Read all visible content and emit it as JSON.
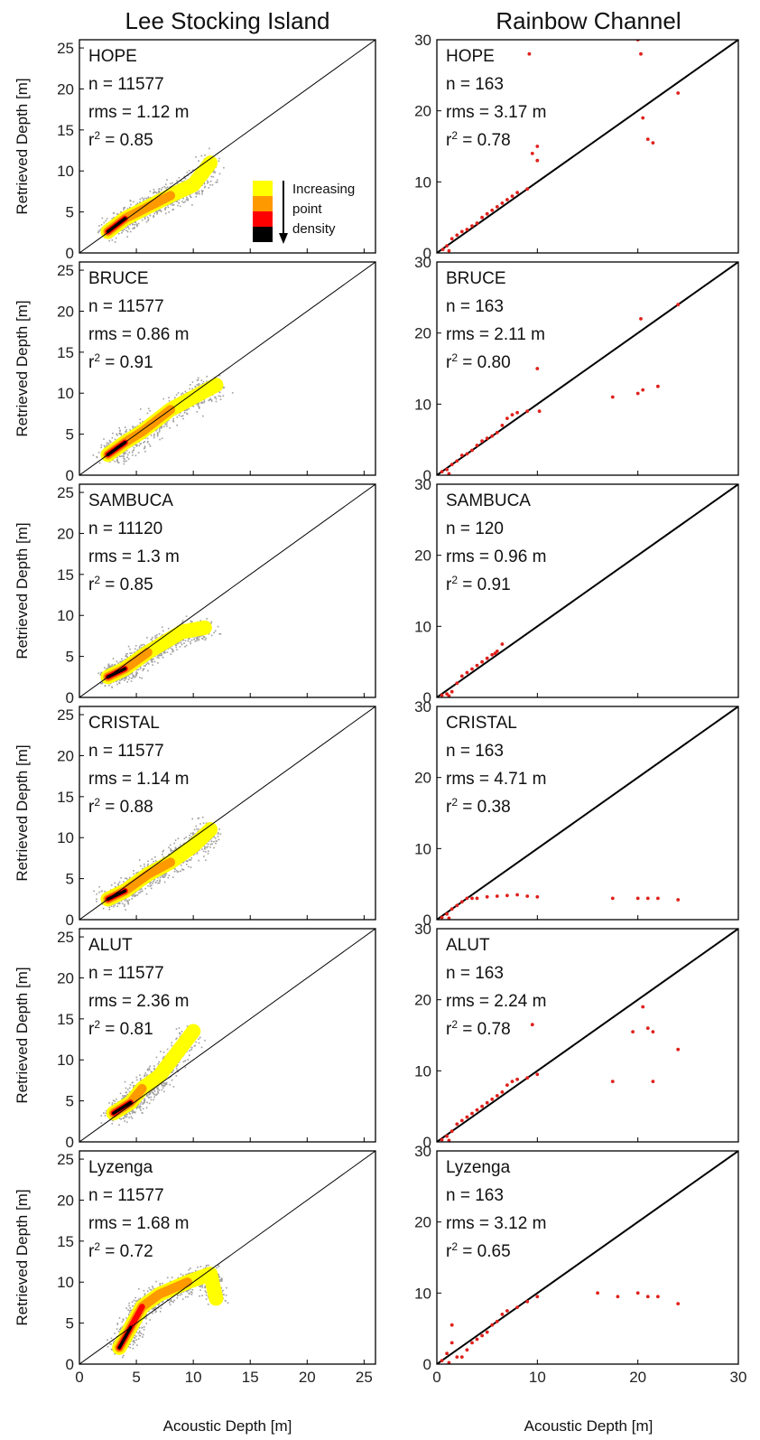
{
  "colors": {
    "lsi_cloud": "#9e9e9e",
    "lsi_density": [
      "#ffff00",
      "#ff9900",
      "#ff0000",
      "#000000"
    ],
    "rainbow_points": "#e0201b",
    "one_to_one_line": "#000000",
    "frame": "#000000"
  },
  "figure": {
    "column_titles": [
      "Lee Stocking Island",
      "Rainbow Channel"
    ],
    "ylabel": "Retrieved Depth [m]",
    "xlabel": "Acoustic Depth [m]",
    "legend": {
      "swatch_colors": [
        "#ffff00",
        "#ff9900",
        "#ff0000",
        "#000000"
      ],
      "lines": [
        "Increasing",
        "point",
        "density"
      ]
    }
  },
  "chart_data": [
    {
      "type": "scatter",
      "site": "Lee Stocking Island",
      "method": "HOPE",
      "n": "11577",
      "rms": "1.12 m",
      "r2": "0.85",
      "xlim": [
        0,
        26
      ],
      "ylim": [
        0,
        26
      ],
      "xticks": [
        0,
        5,
        10,
        15,
        20,
        25
      ],
      "yticks": [
        0,
        5,
        10,
        15,
        20,
        25
      ],
      "one_to_one": true,
      "density_core": [
        [
          2.5,
          2.6
        ],
        [
          4,
          4.2
        ],
        [
          6,
          5.6
        ],
        [
          8,
          7
        ],
        [
          10,
          8.3
        ],
        [
          11.5,
          11
        ]
      ]
    },
    {
      "type": "scatter",
      "site": "Rainbow Channel",
      "method": "HOPE",
      "n": "163",
      "rms": "3.17 m",
      "r2": "0.78",
      "xlim": [
        0,
        30
      ],
      "ylim": [
        0,
        30
      ],
      "xticks": [
        0,
        10,
        20,
        30
      ],
      "yticks": [
        0,
        10,
        20,
        30
      ],
      "one_to_one": true,
      "points": [
        [
          0.6,
          0.5
        ],
        [
          1,
          1
        ],
        [
          1.2,
          0.3
        ],
        [
          1.5,
          2
        ],
        [
          2,
          2.5
        ],
        [
          2.5,
          3
        ],
        [
          3,
          3.3
        ],
        [
          3.5,
          3.8
        ],
        [
          4,
          4.2
        ],
        [
          4.5,
          5
        ],
        [
          5,
          5.5
        ],
        [
          5.5,
          6
        ],
        [
          6,
          6.5
        ],
        [
          6.5,
          7
        ],
        [
          7,
          7.5
        ],
        [
          7.5,
          8
        ],
        [
          8,
          8.5
        ],
        [
          9,
          9
        ],
        [
          10,
          13
        ],
        [
          10,
          15
        ],
        [
          9.5,
          14
        ],
        [
          9.2,
          28
        ],
        [
          20,
          30
        ],
        [
          20.3,
          28
        ],
        [
          20.5,
          19
        ],
        [
          21,
          16
        ],
        [
          21.5,
          15.5
        ],
        [
          24,
          22.5
        ]
      ]
    },
    {
      "type": "scatter",
      "site": "Lee Stocking Island",
      "method": "BRUCE",
      "n": "11577",
      "rms": "0.86 m",
      "r2": "0.91",
      "xlim": [
        0,
        26
      ],
      "ylim": [
        0,
        26
      ],
      "xticks": [
        0,
        5,
        10,
        15,
        20,
        25
      ],
      "yticks": [
        0,
        5,
        10,
        15,
        20,
        25
      ],
      "one_to_one": true,
      "density_core": [
        [
          2.5,
          2.5
        ],
        [
          4,
          4
        ],
        [
          5.5,
          5.3
        ],
        [
          8,
          8
        ],
        [
          10,
          9.5
        ],
        [
          12,
          11
        ]
      ]
    },
    {
      "type": "scatter",
      "site": "Rainbow Channel",
      "method": "BRUCE",
      "n": "163",
      "rms": "2.11 m",
      "r2": "0.80",
      "xlim": [
        0,
        30
      ],
      "ylim": [
        0,
        30
      ],
      "xticks": [
        0,
        10,
        20,
        30
      ],
      "yticks": [
        0,
        10,
        20,
        30
      ],
      "one_to_one": true,
      "points": [
        [
          0.5,
          0.5
        ],
        [
          1,
          0.8
        ],
        [
          1.2,
          0.2
        ],
        [
          1.5,
          1.5
        ],
        [
          2,
          2
        ],
        [
          2.5,
          2.8
        ],
        [
          3,
          3
        ],
        [
          3.5,
          3.5
        ],
        [
          4,
          4.2
        ],
        [
          4.5,
          4.8
        ],
        [
          5,
          5.2
        ],
        [
          5.5,
          5.5
        ],
        [
          6,
          6
        ],
        [
          6.5,
          7
        ],
        [
          7,
          8
        ],
        [
          7.5,
          8.5
        ],
        [
          8,
          8.8
        ],
        [
          9,
          9
        ],
        [
          10,
          15
        ],
        [
          10.2,
          9
        ],
        [
          17.5,
          11
        ],
        [
          20,
          11.5
        ],
        [
          20.5,
          12
        ],
        [
          20.3,
          22
        ],
        [
          22,
          12.5
        ],
        [
          24,
          24
        ]
      ]
    },
    {
      "type": "scatter",
      "site": "Lee Stocking Island",
      "method": "SAMBUCA",
      "n": "11120",
      "rms": "1.3 m",
      "r2": "0.85",
      "xlim": [
        0,
        26
      ],
      "ylim": [
        0,
        26
      ],
      "xticks": [
        0,
        5,
        10,
        15,
        20,
        25
      ],
      "yticks": [
        0,
        5,
        10,
        15,
        20,
        25
      ],
      "one_to_one": true,
      "density_core": [
        [
          2.5,
          2.5
        ],
        [
          4,
          3.5
        ],
        [
          6,
          5.5
        ],
        [
          9,
          8
        ],
        [
          11,
          8.5
        ]
      ]
    },
    {
      "type": "scatter",
      "site": "Rainbow Channel",
      "method": "SAMBUCA",
      "n": "120",
      "rms": "0.96 m",
      "r2": "0.91",
      "xlim": [
        0,
        30
      ],
      "ylim": [
        0,
        30
      ],
      "xticks": [
        0,
        10,
        20,
        30
      ],
      "yticks": [
        0,
        10,
        20,
        30
      ],
      "one_to_one": true,
      "points": [
        [
          0.5,
          0.3
        ],
        [
          1,
          0.5
        ],
        [
          1.2,
          0.2
        ],
        [
          1.5,
          0.8
        ],
        [
          2,
          2
        ],
        [
          2.5,
          3
        ],
        [
          3,
          3.5
        ],
        [
          3.5,
          4
        ],
        [
          4,
          4.5
        ],
        [
          4.5,
          5
        ],
        [
          5,
          5.5
        ],
        [
          5.5,
          6
        ],
        [
          6,
          6.5
        ],
        [
          6.5,
          7.5
        ],
        [
          5.8,
          6.2
        ]
      ]
    },
    {
      "type": "scatter",
      "site": "Lee Stocking Island",
      "method": "CRISTAL",
      "n": "11577",
      "rms": "1.14 m",
      "r2": "0.88",
      "xlim": [
        0,
        26
      ],
      "ylim": [
        0,
        26
      ],
      "xticks": [
        0,
        5,
        10,
        15,
        20,
        25
      ],
      "yticks": [
        0,
        5,
        10,
        15,
        20,
        25
      ],
      "one_to_one": true,
      "density_core": [
        [
          2.5,
          2.5
        ],
        [
          4,
          3.5
        ],
        [
          6,
          5.5
        ],
        [
          8,
          7
        ],
        [
          10,
          9
        ],
        [
          11.5,
          11
        ]
      ]
    },
    {
      "type": "scatter",
      "site": "Rainbow Channel",
      "method": "CRISTAL",
      "n": "163",
      "rms": "4.71 m",
      "r2": "0.38",
      "xlim": [
        0,
        30
      ],
      "ylim": [
        0,
        30
      ],
      "xticks": [
        0,
        10,
        20,
        30
      ],
      "yticks": [
        0,
        10,
        20,
        30
      ],
      "one_to_one": true,
      "points": [
        [
          0.5,
          0.3
        ],
        [
          1,
          0.8
        ],
        [
          1.2,
          0.2
        ],
        [
          1.5,
          1.5
        ],
        [
          2,
          2
        ],
        [
          2.5,
          2.5
        ],
        [
          3,
          3
        ],
        [
          3.5,
          3
        ],
        [
          4,
          3
        ],
        [
          5,
          3.2
        ],
        [
          6,
          3.3
        ],
        [
          7,
          3.4
        ],
        [
          8,
          3.5
        ],
        [
          9,
          3.3
        ],
        [
          10,
          3.2
        ],
        [
          17.5,
          3
        ],
        [
          20,
          3
        ],
        [
          21,
          3
        ],
        [
          22,
          3
        ],
        [
          24,
          2.8
        ]
      ]
    },
    {
      "type": "scatter",
      "site": "Lee Stocking Island",
      "method": "ALUT",
      "n": "11577",
      "rms": "2.36 m",
      "r2": "0.81",
      "xlim": [
        0,
        26
      ],
      "ylim": [
        0,
        26
      ],
      "xticks": [
        0,
        5,
        10,
        15,
        20,
        25
      ],
      "yticks": [
        0,
        5,
        10,
        15,
        20,
        25
      ],
      "one_to_one": true,
      "density_core": [
        [
          3,
          3.5
        ],
        [
          4.5,
          4.8
        ],
        [
          5.5,
          6.5
        ],
        [
          7,
          8
        ],
        [
          10,
          13.5
        ]
      ]
    },
    {
      "type": "scatter",
      "site": "Rainbow Channel",
      "method": "ALUT",
      "n": "163",
      "rms": "2.24 m",
      "r2": "0.78",
      "xlim": [
        0,
        30
      ],
      "ylim": [
        0,
        30
      ],
      "xticks": [
        0,
        10,
        20,
        30
      ],
      "yticks": [
        0,
        10,
        20,
        30
      ],
      "one_to_one": true,
      "points": [
        [
          0.5,
          0.3
        ],
        [
          1,
          0.8
        ],
        [
          1.2,
          0.2
        ],
        [
          1.5,
          1.5
        ],
        [
          2,
          2.5
        ],
        [
          2.5,
          3
        ],
        [
          3,
          3.5
        ],
        [
          3.5,
          4
        ],
        [
          4,
          4.5
        ],
        [
          4.5,
          5
        ],
        [
          5,
          5.5
        ],
        [
          5.5,
          6
        ],
        [
          6,
          6.5
        ],
        [
          6.5,
          7
        ],
        [
          7,
          8
        ],
        [
          7.5,
          8.5
        ],
        [
          8,
          8.8
        ],
        [
          9,
          9
        ],
        [
          10,
          9.5
        ],
        [
          9.5,
          16.5
        ],
        [
          17.5,
          8.5
        ],
        [
          19.5,
          15.5
        ],
        [
          20.5,
          19
        ],
        [
          21,
          16
        ],
        [
          21.5,
          8.5
        ],
        [
          21.5,
          15.5
        ],
        [
          24,
          13
        ]
      ]
    },
    {
      "type": "scatter",
      "site": "Lee Stocking Island",
      "method": "Lyzenga",
      "n": "11577",
      "rms": "1.68 m",
      "r2": "0.72",
      "xlim": [
        0,
        26
      ],
      "ylim": [
        0,
        26
      ],
      "xticks": [
        0,
        5,
        10,
        15,
        20,
        25
      ],
      "yticks": [
        0,
        5,
        10,
        15,
        20,
        25
      ],
      "one_to_one": true,
      "density_core": [
        [
          3.5,
          2
        ],
        [
          4.5,
          4.5
        ],
        [
          5.5,
          7
        ],
        [
          7,
          8.5
        ],
        [
          9.5,
          10
        ],
        [
          11.5,
          11
        ],
        [
          12,
          8
        ]
      ]
    },
    {
      "type": "scatter",
      "site": "Rainbow Channel",
      "method": "Lyzenga",
      "n": "163",
      "rms": "3.12 m",
      "r2": "0.65",
      "xlim": [
        0,
        30
      ],
      "ylim": [
        0,
        30
      ],
      "xticks": [
        0,
        10,
        20,
        30
      ],
      "yticks": [
        0,
        10,
        20,
        30
      ],
      "one_to_one": true,
      "points": [
        [
          0.5,
          0.5
        ],
        [
          1,
          1.5
        ],
        [
          1.2,
          0.2
        ],
        [
          1.5,
          5.5
        ],
        [
          1.5,
          3
        ],
        [
          2,
          1
        ],
        [
          2.5,
          1
        ],
        [
          3,
          2
        ],
        [
          3.5,
          3
        ],
        [
          4,
          3.5
        ],
        [
          4.5,
          4
        ],
        [
          5,
          4.5
        ],
        [
          5.5,
          5.5
        ],
        [
          6,
          6
        ],
        [
          6.5,
          7
        ],
        [
          7,
          7.5
        ],
        [
          8,
          8
        ],
        [
          9,
          8.8
        ],
        [
          10,
          9.5
        ],
        [
          16,
          10
        ],
        [
          18,
          9.5
        ],
        [
          20,
          10
        ],
        [
          21,
          9.5
        ],
        [
          22,
          9.5
        ],
        [
          24,
          8.5
        ]
      ]
    }
  ]
}
